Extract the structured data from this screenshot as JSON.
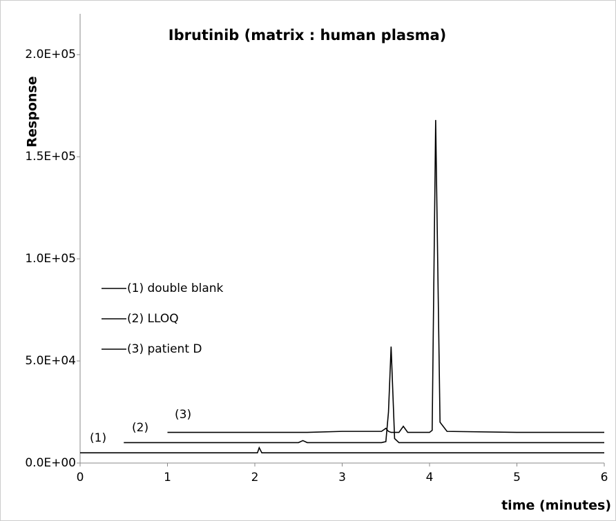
{
  "chart_data": {
    "type": "line",
    "title": "Ibrutinib (matrix : human plasma)",
    "y_label": "Response",
    "x_label": "time (minutes)",
    "x": [
      0,
      0.5,
      1,
      2,
      2.03,
      2.05,
      2.08,
      2.5,
      2.55,
      2.6,
      3,
      3.45,
      3.5,
      3.53,
      3.56,
      3.6,
      3.65,
      3.7,
      3.75,
      4,
      4.03,
      4.07,
      4.12,
      4.2,
      5,
      6
    ],
    "series": [
      {
        "name": "(1) double blank",
        "color": "#000000",
        "values": [
          5000,
          5000,
          5000,
          5000,
          5000,
          7500,
          5000,
          5000,
          5000,
          5000,
          5000,
          5000,
          5000,
          5000,
          5000,
          5000,
          5000,
          5000,
          5000,
          5000,
          5000,
          5000,
          5000,
          5000,
          5000,
          5000
        ]
      },
      {
        "name": "(2) LLOQ",
        "color": "#000000",
        "values": [
          null,
          10000,
          10000,
          10000,
          10000,
          10000,
          10000,
          10000,
          11000,
          10000,
          10000,
          10000,
          10500,
          25000,
          57000,
          12000,
          10000,
          10000,
          10000,
          10000,
          10000,
          10000,
          10000,
          10000,
          10000,
          10000
        ]
      },
      {
        "name": "(3) patient D",
        "color": "#000000",
        "values": [
          null,
          null,
          15000,
          15000,
          15000,
          15000,
          15000,
          15000,
          15000,
          15000,
          15500,
          15500,
          17000,
          15500,
          15000,
          15000,
          15000,
          18000,
          15000,
          15000,
          16000,
          168000,
          20000,
          15500,
          15000,
          15000
        ]
      }
    ],
    "annotations": [
      "(1)",
      "(2)",
      "(3)"
    ],
    "xlim": [
      0,
      6
    ],
    "xticks": [
      0,
      1,
      2,
      3,
      4,
      5,
      6
    ],
    "ylim": [
      0,
      220000
    ],
    "yticks": [
      {
        "value": 0,
        "label": "0.0E+00"
      },
      {
        "value": 50000,
        "label": "5.0E+04"
      },
      {
        "value": 100000,
        "label": "1.0E+05"
      },
      {
        "value": 150000,
        "label": "1.5E+05"
      },
      {
        "value": 200000,
        "label": "2.0E+05"
      }
    ],
    "grid": false
  }
}
